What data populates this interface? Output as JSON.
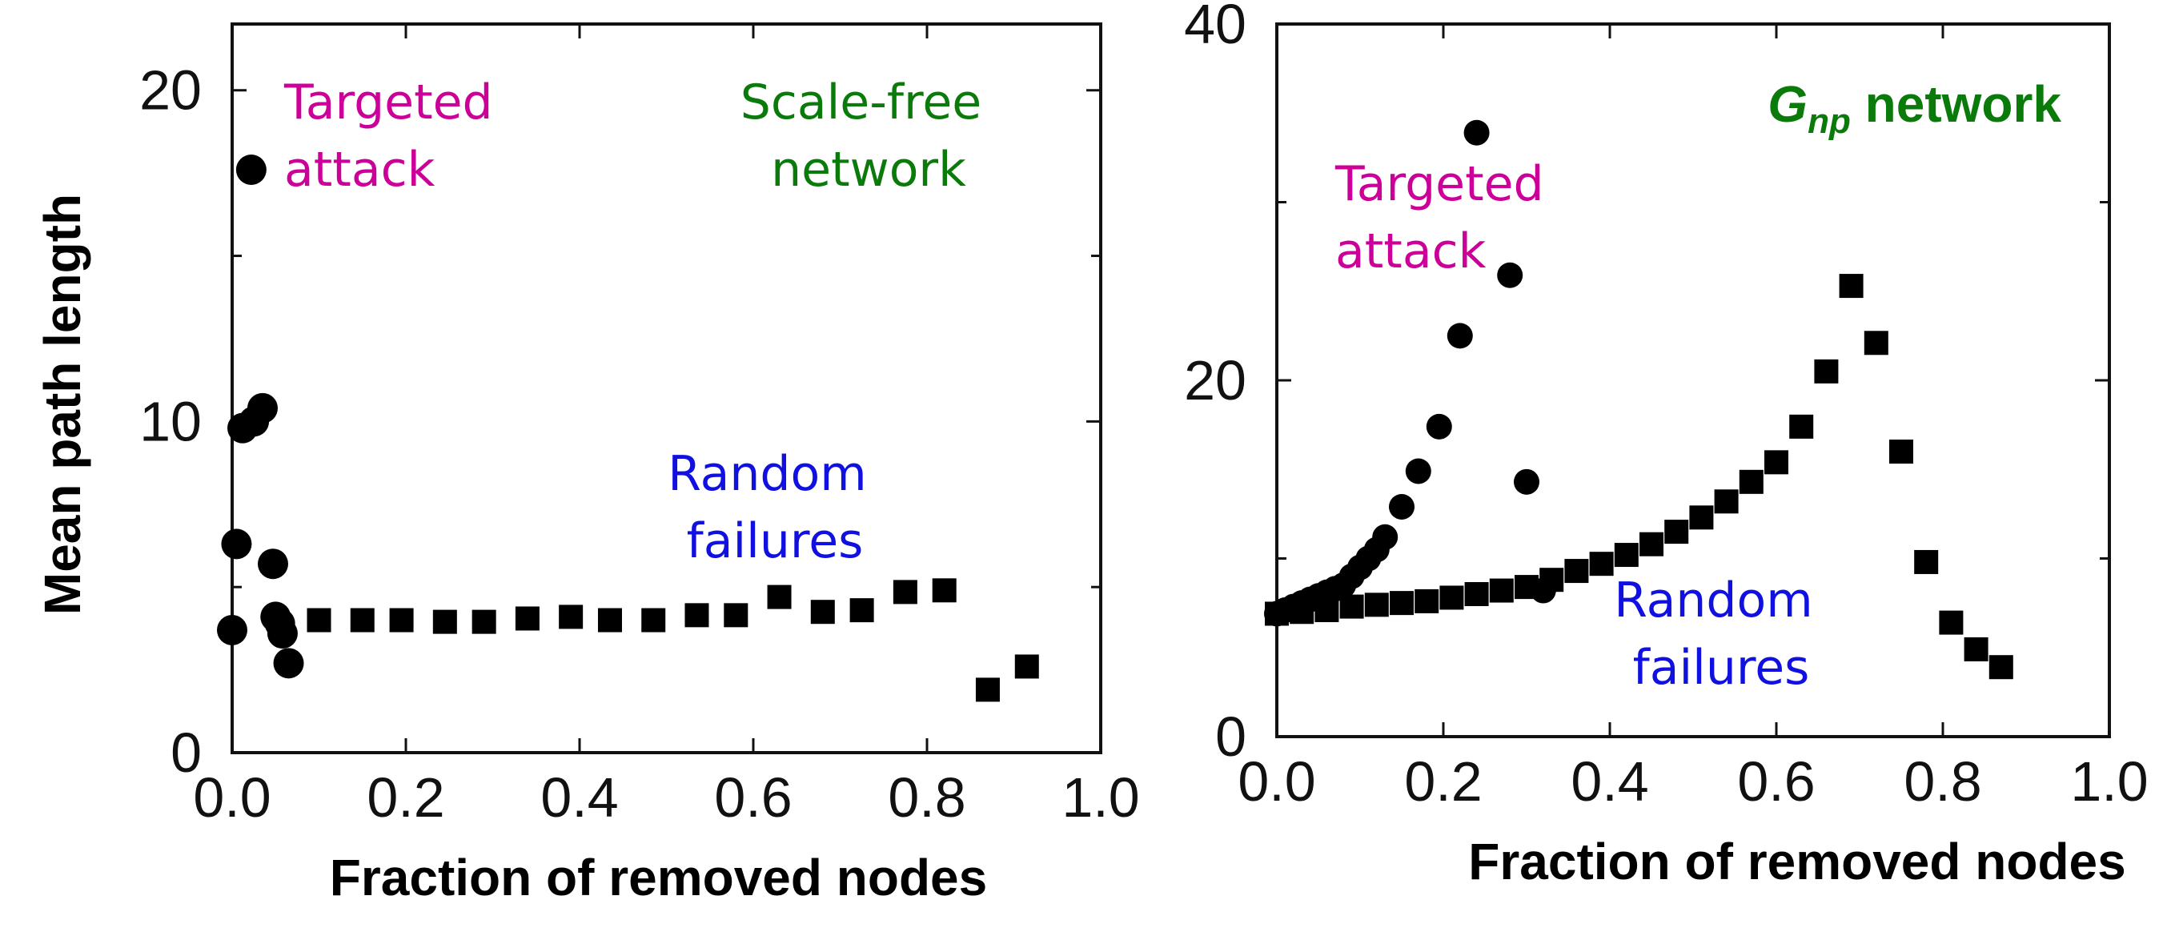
{
  "chart_data": [
    {
      "type": "scatter",
      "xlabel": "Fraction of removed nodes",
      "ylabel": "Mean path length",
      "xlim": [
        0,
        1
      ],
      "ylim": [
        0,
        22
      ],
      "xticks": [
        "0.0",
        "0.2",
        "0.4",
        "0.6",
        "0.8",
        "1.0"
      ],
      "yticks": [
        "0",
        "10",
        "20"
      ],
      "yticks_values": [
        0,
        10,
        20
      ],
      "grid": false,
      "annotations": [
        {
          "text": "Targeted attack",
          "color": "#cc0099"
        },
        {
          "text": "Scale-free network",
          "color": "#0a7a0a"
        },
        {
          "text": "Random failures",
          "color": "#1010e0"
        }
      ],
      "series": [
        {
          "marker": "circle",
          "label": "Targeted attack",
          "x": [
            0.0,
            0.005,
            0.012,
            0.022,
            0.025,
            0.035,
            0.047,
            0.05,
            0.055,
            0.058,
            0.065
          ],
          "y": [
            3.7,
            6.3,
            9.8,
            17.6,
            10.0,
            10.4,
            5.7,
            4.1,
            3.9,
            3.6,
            2.7
          ]
        },
        {
          "marker": "square",
          "label": "Random failures",
          "x": [
            0.1,
            0.15,
            0.195,
            0.245,
            0.29,
            0.34,
            0.39,
            0.435,
            0.485,
            0.535,
            0.58,
            0.63,
            0.68,
            0.725,
            0.775,
            0.82,
            0.87,
            0.915
          ],
          "y": [
            4.0,
            4.0,
            4.0,
            3.95,
            3.95,
            4.05,
            4.1,
            4.0,
            4.0,
            4.15,
            4.15,
            4.7,
            4.25,
            4.3,
            4.85,
            4.9,
            1.9,
            2.6
          ]
        }
      ]
    },
    {
      "type": "scatter",
      "xlabel": "Fraction of removed nodes",
      "ylabel": "",
      "xlim": [
        0,
        1
      ],
      "ylim": [
        0,
        40
      ],
      "xticks": [
        "0.0",
        "0.2",
        "0.4",
        "0.6",
        "0.8",
        "1.0"
      ],
      "yticks": [
        "0",
        "20",
        "40"
      ],
      "yticks_values": [
        0,
        20,
        40
      ],
      "grid": false,
      "annotations": [
        {
          "text": "Targeted attack",
          "color": "#cc0099"
        },
        {
          "text": "Gnp network",
          "color": "#0a7a0a"
        },
        {
          "text": "Random failures",
          "color": "#1010e0"
        }
      ],
      "series": [
        {
          "marker": "circle",
          "label": "Targeted attack",
          "x": [
            0.0,
            0.01,
            0.02,
            0.03,
            0.04,
            0.05,
            0.06,
            0.07,
            0.08,
            0.09,
            0.1,
            0.11,
            0.12,
            0.13,
            0.15,
            0.17,
            0.195,
            0.22,
            0.24,
            0.28,
            0.3,
            0.32
          ],
          "y": [
            6.9,
            7.1,
            7.3,
            7.5,
            7.7,
            7.9,
            8.1,
            8.3,
            8.5,
            9.0,
            9.5,
            10.0,
            10.5,
            11.2,
            12.9,
            14.9,
            17.4,
            22.5,
            33.9,
            25.9,
            14.3,
            8.2
          ]
        },
        {
          "marker": "square",
          "label": "Random failures",
          "x": [
            0.0,
            0.03,
            0.06,
            0.09,
            0.12,
            0.15,
            0.18,
            0.21,
            0.24,
            0.27,
            0.3,
            0.33,
            0.36,
            0.39,
            0.42,
            0.45,
            0.48,
            0.51,
            0.54,
            0.57,
            0.6,
            0.63,
            0.66,
            0.69,
            0.72,
            0.75,
            0.78,
            0.81,
            0.84,
            0.87
          ],
          "y": [
            6.9,
            7.0,
            7.1,
            7.3,
            7.4,
            7.5,
            7.6,
            7.8,
            8.0,
            8.2,
            8.4,
            8.8,
            9.3,
            9.7,
            10.2,
            10.8,
            11.5,
            12.3,
            13.2,
            14.3,
            15.4,
            17.4,
            20.5,
            25.3,
            22.1,
            16.0,
            9.8,
            6.4,
            4.9,
            3.9
          ]
        }
      ]
    }
  ]
}
